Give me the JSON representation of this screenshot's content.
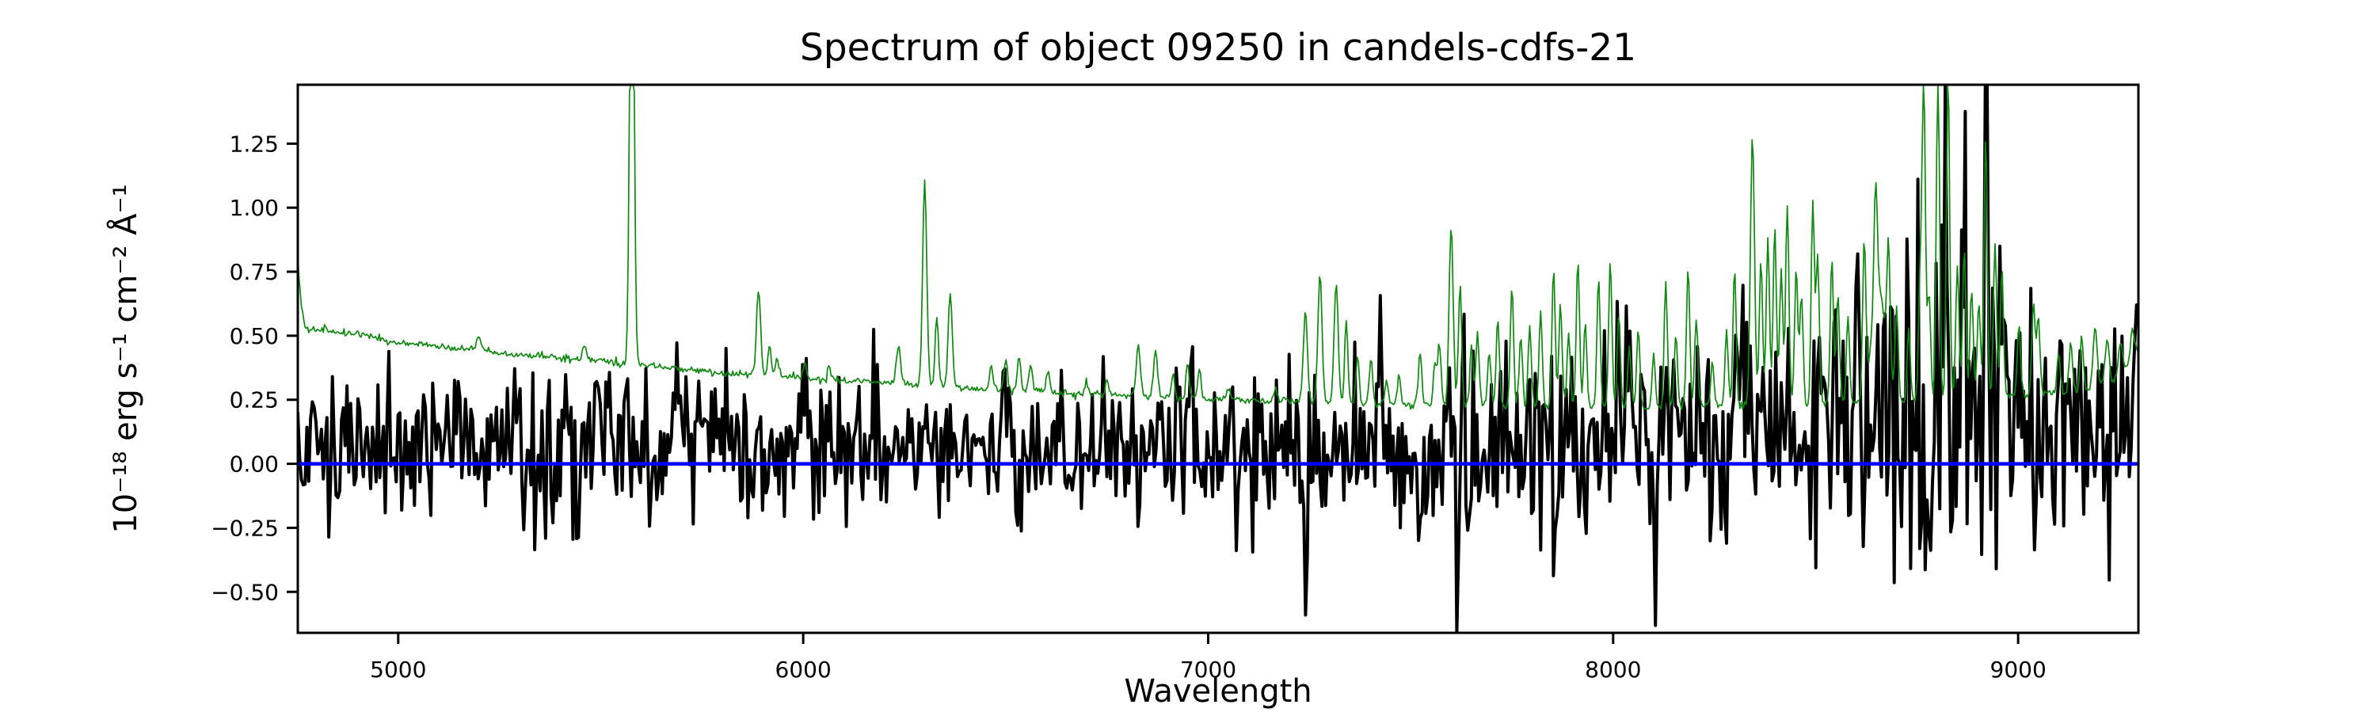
{
  "figure": {
    "background": "#ffffff"
  },
  "chart_data": {
    "type": "line",
    "title": "Spectrum of object 09250 in candels-cdfs-21",
    "xlabel": "Wavelength",
    "ylabel": "10⁻¹⁸ erg s⁻¹ cm⁻² Å⁻¹",
    "xlim": [
      4752,
      9297
    ],
    "ylim": [
      -0.66,
      1.48
    ],
    "grid": false,
    "legend": null,
    "axis_color": "#000000",
    "xticks": [
      {
        "value": 5000,
        "label": "5000"
      },
      {
        "value": 6000,
        "label": "6000"
      },
      {
        "value": 7000,
        "label": "7000"
      },
      {
        "value": 8000,
        "label": "8000"
      },
      {
        "value": 9000,
        "label": "9000"
      }
    ],
    "yticks": [
      {
        "value": 1.25,
        "label": "1.25"
      },
      {
        "value": 1.0,
        "label": "1.00"
      },
      {
        "value": 0.75,
        "label": "0.75"
      },
      {
        "value": 0.5,
        "label": "0.50"
      },
      {
        "value": 0.25,
        "label": "0.25"
      },
      {
        "value": 0.0,
        "label": "0.00"
      },
      {
        "value": -0.25,
        "label": "−0.25"
      },
      {
        "value": -0.5,
        "label": "−0.50"
      }
    ],
    "series": [
      {
        "id": "flux",
        "name": "object flux spectrum (noisy, around zero)",
        "type": "noisy-line",
        "color": "#000000",
        "line_width": 4,
        "sample_step": 4.5,
        "seed": 1337,
        "baseline_points": [
          [
            4752,
            0.09
          ],
          [
            5500,
            0.08
          ],
          [
            6500,
            0.06
          ],
          [
            7500,
            0.06
          ],
          [
            8300,
            0.09
          ],
          [
            8700,
            0.14
          ],
          [
            9000,
            0.12
          ],
          [
            9300,
            0.1
          ]
        ],
        "noise_sigma_points": [
          [
            4752,
            0.16
          ],
          [
            5000,
            0.15
          ],
          [
            5300,
            0.16
          ],
          [
            5600,
            0.16
          ],
          [
            5900,
            0.15
          ],
          [
            6300,
            0.14
          ],
          [
            6700,
            0.13
          ],
          [
            7100,
            0.14
          ],
          [
            7300,
            0.17
          ],
          [
            7600,
            0.18
          ],
          [
            7900,
            0.17
          ],
          [
            8150,
            0.17
          ],
          [
            8300,
            0.22
          ],
          [
            8500,
            0.25
          ],
          [
            8650,
            0.3
          ],
          [
            8800,
            0.37
          ],
          [
            8950,
            0.37
          ],
          [
            9100,
            0.26
          ],
          [
            9300,
            0.24
          ]
        ],
        "features": [
          [
            7238,
            -0.62,
            4
          ],
          [
            7520,
            -0.38,
            4
          ],
          [
            7617,
            -0.55,
            4
          ],
          [
            7424,
            0.5,
            4
          ],
          [
            8035,
            0.55,
            4
          ],
          [
            8320,
            0.4,
            4
          ],
          [
            8600,
            0.65,
            5
          ],
          [
            8685,
            0.5,
            5
          ],
          [
            8820,
            1.2,
            5
          ],
          [
            8865,
            0.9,
            5
          ],
          [
            8922,
            1.25,
            5
          ],
          [
            8955,
            0.8,
            5
          ],
          [
            9293,
            0.5,
            5
          ]
        ]
      },
      {
        "id": "sky",
        "name": "noise / sky spectrum (continuum + emission-line forest)",
        "type": "continuum-plus-lines",
        "color": "#118811",
        "line_width": 1.7,
        "sample_step": 3,
        "seed": 77,
        "jitter_sigma": 0.007,
        "continuum_points": [
          [
            4752,
            0.8
          ],
          [
            4760,
            0.62
          ],
          [
            4772,
            0.52
          ],
          [
            4800,
            0.525
          ],
          [
            4850,
            0.52
          ],
          [
            4900,
            0.505
          ],
          [
            4950,
            0.49
          ],
          [
            5000,
            0.475
          ],
          [
            5050,
            0.465
          ],
          [
            5100,
            0.455
          ],
          [
            5150,
            0.45
          ],
          [
            5200,
            0.445
          ],
          [
            5250,
            0.43
          ],
          [
            5300,
            0.42
          ],
          [
            5350,
            0.425
          ],
          [
            5400,
            0.415
          ],
          [
            5450,
            0.41
          ],
          [
            5500,
            0.4
          ],
          [
            5550,
            0.39
          ],
          [
            5600,
            0.385
          ],
          [
            5650,
            0.378
          ],
          [
            5700,
            0.372
          ],
          [
            5750,
            0.363
          ],
          [
            5800,
            0.355
          ],
          [
            5850,
            0.35
          ],
          [
            5900,
            0.345
          ],
          [
            5950,
            0.34
          ],
          [
            6000,
            0.335
          ],
          [
            6100,
            0.325
          ],
          [
            6200,
            0.318
          ],
          [
            6300,
            0.308
          ],
          [
            6400,
            0.296
          ],
          [
            6500,
            0.29
          ],
          [
            6600,
            0.281
          ],
          [
            6700,
            0.272
          ],
          [
            6800,
            0.265
          ],
          [
            6900,
            0.258
          ],
          [
            7000,
            0.253
          ],
          [
            7100,
            0.249
          ],
          [
            7200,
            0.245
          ],
          [
            7300,
            0.24
          ],
          [
            7400,
            0.236
          ],
          [
            7500,
            0.232
          ],
          [
            7600,
            0.229
          ],
          [
            7700,
            0.226
          ],
          [
            7800,
            0.224
          ],
          [
            7900,
            0.222
          ],
          [
            8000,
            0.22
          ],
          [
            8100,
            0.219
          ],
          [
            8200,
            0.23
          ],
          [
            8300,
            0.226
          ],
          [
            8400,
            0.228
          ],
          [
            8500,
            0.232
          ],
          [
            8600,
            0.238
          ],
          [
            8700,
            0.243
          ],
          [
            8800,
            0.25
          ],
          [
            8900,
            0.258
          ],
          [
            9000,
            0.267
          ],
          [
            9100,
            0.278
          ],
          [
            9150,
            0.285
          ],
          [
            9200,
            0.3
          ],
          [
            9250,
            0.33
          ],
          [
            9297,
            0.44
          ]
        ],
        "emission_lines": [
          [
            5199,
            0.05,
            6
          ],
          [
            5460,
            0.05,
            5
          ],
          [
            5577,
            2.2,
            5
          ],
          [
            5890,
            0.33,
            5
          ],
          [
            5917,
            0.12,
            4
          ],
          [
            5935,
            0.07,
            4
          ],
          [
            6004,
            0.06,
            4
          ],
          [
            6064,
            0.05,
            4
          ],
          [
            6235,
            0.15,
            5
          ],
          [
            6300,
            0.8,
            5
          ],
          [
            6330,
            0.28,
            4
          ],
          [
            6363,
            0.36,
            5
          ],
          [
            6465,
            0.09,
            4
          ],
          [
            6500,
            0.12,
            4
          ],
          [
            6533,
            0.14,
            4
          ],
          [
            6562,
            0.11,
            4
          ],
          [
            6604,
            0.08,
            4
          ],
          [
            6700,
            0.05,
            4
          ],
          [
            6750,
            0.05,
            4
          ],
          [
            6827,
            0.2,
            5
          ],
          [
            6870,
            0.18,
            5
          ],
          [
            6913,
            0.09,
            4
          ],
          [
            6949,
            0.13,
            4
          ],
          [
            6978,
            0.11,
            4
          ],
          [
            7050,
            0.05,
            4
          ],
          [
            7165,
            0.05,
            4
          ],
          [
            7240,
            0.35,
            5
          ],
          [
            7276,
            0.5,
            5
          ],
          [
            7316,
            0.47,
            5
          ],
          [
            7341,
            0.32,
            4
          ],
          [
            7369,
            0.18,
            4
          ],
          [
            7402,
            0.17,
            4
          ],
          [
            7440,
            0.09,
            4
          ],
          [
            7471,
            0.11,
            4
          ],
          [
            7523,
            0.21,
            4
          ],
          [
            7560,
            0.17,
            4
          ],
          [
            7571,
            0.24,
            4
          ],
          [
            7600,
            0.7,
            5
          ],
          [
            7622,
            0.48,
            4
          ],
          [
            7650,
            0.24,
            4
          ],
          [
            7665,
            0.29,
            4
          ],
          [
            7694,
            0.21,
            4
          ],
          [
            7715,
            0.34,
            4
          ],
          [
            7750,
            0.47,
            4
          ],
          [
            7772,
            0.28,
            4
          ],
          [
            7794,
            0.31,
            4
          ],
          [
            7821,
            0.37,
            4
          ],
          [
            7853,
            0.54,
            4
          ],
          [
            7870,
            0.4,
            4
          ],
          [
            7890,
            0.28,
            4
          ],
          [
            7913,
            0.58,
            4
          ],
          [
            7931,
            0.33,
            4
          ],
          [
            7964,
            0.51,
            4
          ],
          [
            7993,
            0.57,
            4
          ],
          [
            8014,
            0.36,
            4
          ],
          [
            8040,
            0.24,
            4
          ],
          [
            8062,
            0.31,
            4
          ],
          [
            8100,
            0.21,
            4
          ],
          [
            8130,
            0.49,
            4
          ],
          [
            8155,
            0.28,
            4
          ],
          [
            8185,
            0.54,
            4
          ],
          [
            8205,
            0.33,
            4
          ],
          [
            8245,
            0.17,
            4
          ],
          [
            8280,
            0.29,
            4
          ],
          [
            8300,
            0.54,
            4
          ],
          [
            8344,
            1.05,
            5
          ],
          [
            8365,
            0.58,
            4
          ],
          [
            8382,
            0.66,
            4
          ],
          [
            8399,
            0.7,
            4
          ],
          [
            8415,
            0.53,
            4
          ],
          [
            8430,
            0.8,
            4
          ],
          [
            8452,
            0.53,
            4
          ],
          [
            8465,
            0.43,
            4
          ],
          [
            8493,
            0.8,
            4
          ],
          [
            8505,
            0.58,
            4
          ],
          [
            8540,
            0.56,
            4
          ],
          [
            8555,
            0.43,
            4
          ],
          [
            8580,
            0.33,
            4
          ],
          [
            8620,
            0.6,
            4
          ],
          [
            8648,
            0.46,
            4
          ],
          [
            8655,
            0.45,
            16
          ],
          [
            8680,
            0.5,
            4
          ],
          [
            8700,
            0.36,
            4
          ],
          [
            8730,
            0.28,
            4
          ],
          [
            8758,
            0.46,
            4
          ],
          [
            8767,
            1.25,
            4
          ],
          [
            8780,
            0.43,
            4
          ],
          [
            8802,
            1.3,
            4
          ],
          [
            8827,
            1.28,
            4
          ],
          [
            8850,
            0.52,
            4
          ],
          [
            8867,
            0.58,
            4
          ],
          [
            8885,
            0.43,
            4
          ],
          [
            8903,
            0.38,
            4
          ],
          [
            8920,
            1.02,
            4
          ],
          [
            8943,
            0.6,
            4
          ],
          [
            8960,
            0.5,
            4
          ],
          [
            9002,
            0.28,
            4
          ],
          [
            9038,
            0.36,
            4
          ],
          [
            9050,
            0.3,
            4
          ],
          [
            9100,
            0.16,
            4
          ],
          [
            9130,
            0.19,
            4
          ],
          [
            9157,
            0.21,
            4
          ],
          [
            9190,
            0.24,
            5
          ],
          [
            9220,
            0.17,
            5
          ],
          [
            9253,
            0.14,
            5
          ],
          [
            9282,
            0.12,
            5
          ]
        ],
        "clipped_at_top": [
          5577,
          8767,
          8802,
          8827
        ]
      },
      {
        "id": "zero",
        "name": "zero flux reference line",
        "type": "hline",
        "color": "#0000ff",
        "line_width": 4.5,
        "y": 0
      }
    ]
  }
}
